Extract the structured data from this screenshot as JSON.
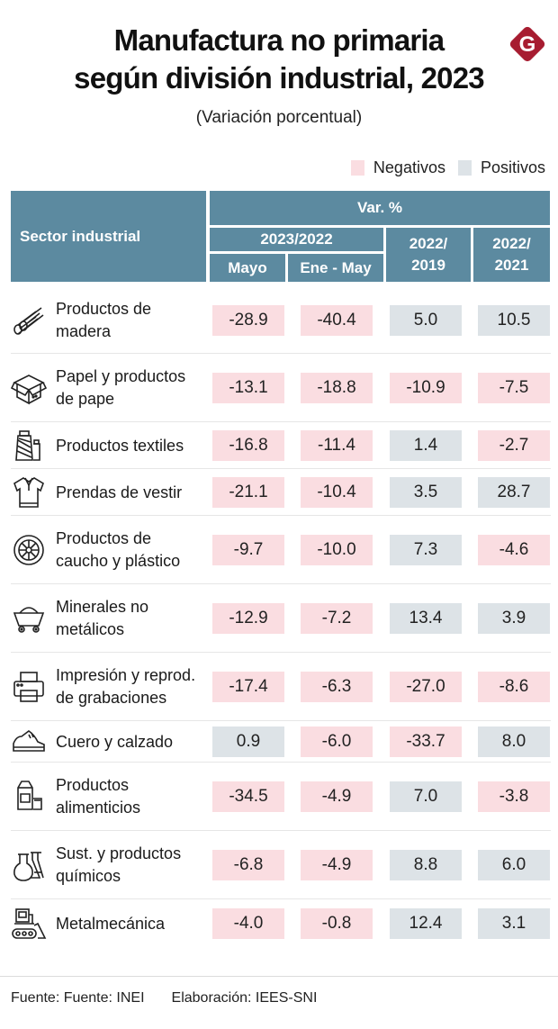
{
  "header": {
    "title_line1": "Manufactura no primaria",
    "title_line2": "según división industrial, 2023",
    "subtitle": "(Variación porcentual)",
    "logo_letter": "G"
  },
  "legend": {
    "negative_label": "Negativos",
    "positive_label": "Positivos"
  },
  "colors": {
    "negative": "#fadde1",
    "positive": "#dde3e7",
    "header_bg": "#5c8aa0",
    "logo": "#a71d31"
  },
  "table_header": {
    "sector": "Sector industrial",
    "var": "Var. %",
    "group_2023_2022": "2023/2022",
    "mayo": "Mayo",
    "ene_may": "Ene - May",
    "col_2022_2019_a": "2022/",
    "col_2022_2019_b": "2019",
    "col_2022_2021_a": "2022/",
    "col_2022_2021_b": "2021"
  },
  "chart_data": {
    "type": "table",
    "title": "Manufactura no primaria según división industrial, 2023",
    "subtitle": "(Variación porcentual)",
    "columns": [
      "Mayo (2023/2022)",
      "Ene - May (2023/2022)",
      "2022/2019",
      "2022/2021"
    ],
    "rows": [
      {
        "icon": "logs-icon",
        "line1": "Productos de",
        "line2": "madera",
        "values": [
          -28.9,
          -40.4,
          5.0,
          10.5
        ],
        "display": [
          "-28.9",
          "-40.4",
          "5.0",
          "10.5"
        ]
      },
      {
        "icon": "box-icon",
        "line1": "Papel y productos",
        "line2": "de pape",
        "values": [
          -13.1,
          -18.8,
          -10.9,
          -7.5
        ],
        "display": [
          "-13.1",
          "-18.8",
          "-10.9",
          "-7.5"
        ]
      },
      {
        "icon": "thread-spool-icon",
        "line1": "Productos textiles",
        "line2": "",
        "values": [
          -16.8,
          -11.4,
          1.4,
          -2.7
        ],
        "display": [
          "-16.8",
          "-11.4",
          "1.4",
          "-2.7"
        ]
      },
      {
        "icon": "shirt-icon",
        "line1": "Prendas de vestir",
        "line2": "",
        "values": [
          -21.1,
          -10.4,
          3.5,
          28.7
        ],
        "display": [
          "-21.1",
          "-10.4",
          "3.5",
          "28.7"
        ]
      },
      {
        "icon": "tire-icon",
        "line1": "Productos de",
        "line2": "caucho y plástico",
        "values": [
          -9.7,
          -10.0,
          7.3,
          -4.6
        ],
        "display": [
          "-9.7",
          "-10.0",
          "7.3",
          "-4.6"
        ]
      },
      {
        "icon": "mine-cart-icon",
        "line1": "Minerales no",
        "line2": "metálicos",
        "values": [
          -12.9,
          -7.2,
          13.4,
          3.9
        ],
        "display": [
          "-12.9",
          "-7.2",
          "13.4",
          "3.9"
        ]
      },
      {
        "icon": "printer-icon",
        "line1": "Impresión y reprod.",
        "line2": "de grabaciones",
        "values": [
          -17.4,
          -6.3,
          -27.0,
          -8.6
        ],
        "display": [
          "-17.4",
          "-6.3",
          "-27.0",
          "-8.6"
        ]
      },
      {
        "icon": "shoe-icon",
        "line1": "Cuero y calzado",
        "line2": "",
        "values": [
          0.9,
          -6.0,
          -33.7,
          8.0
        ],
        "display": [
          "0.9",
          "-6.0",
          "-33.7",
          "8.0"
        ]
      },
      {
        "icon": "milk-carton-icon",
        "line1": "Productos",
        "line2": "alimenticios",
        "values": [
          -34.5,
          -4.9,
          7.0,
          -3.8
        ],
        "display": [
          "-34.5",
          "-4.9",
          "7.0",
          "-3.8"
        ]
      },
      {
        "icon": "flask-icon",
        "line1": "Sust. y productos",
        "line2": "químicos",
        "values": [
          -6.8,
          -4.9,
          8.8,
          6.0
        ],
        "display": [
          "-6.8",
          "-4.9",
          "8.8",
          "6.0"
        ]
      },
      {
        "icon": "bulldozer-icon",
        "line1": "Metalmecánica",
        "line2": "",
        "values": [
          -4.0,
          -0.8,
          12.4,
          3.1
        ],
        "display": [
          "-4.0",
          "-0.8",
          "12.4",
          "3.1"
        ]
      }
    ]
  },
  "footer": {
    "source": "Fuente: Fuente: INEI",
    "credit": "Elaboración: IEES-SNI"
  }
}
